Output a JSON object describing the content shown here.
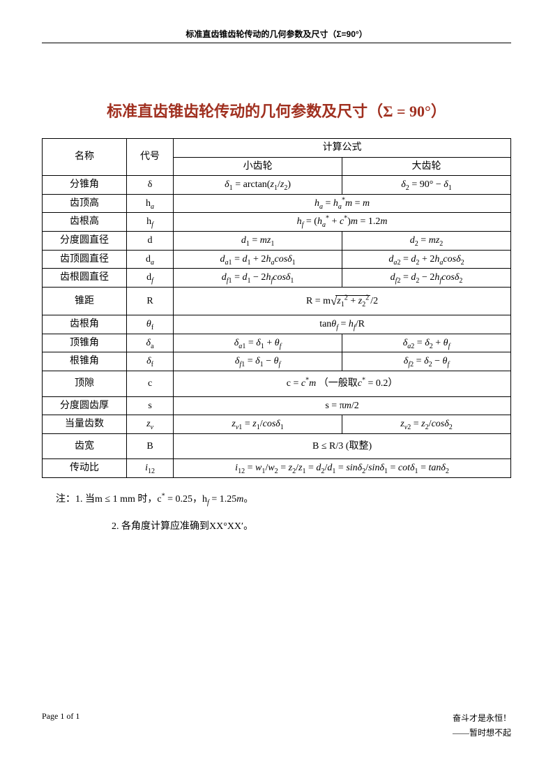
{
  "running_header": "标准直齿锥齿轮传动的几何参数及尺寸（Σ=90°）",
  "title_prefix": "标准直齿锥齿轮传动的几何参数及尺寸（",
  "title_math": "Σ = 90°",
  "title_suffix": "）",
  "header": {
    "name": "名称",
    "symbol": "代号",
    "formula_group": "计算公式",
    "pinion": "小齿轮",
    "gear": "大齿轮"
  },
  "rows": [
    {
      "name": "分锥角",
      "symbol_html": "δ",
      "pinion_html": "<span class='it'>δ</span><sub>1</sub> = arctan(<span class='it'>z</span><sub>1</sub>/<span class='it'>z</span><sub>2</sub>)",
      "gear_html": "<span class='it'>δ</span><sub>2</sub> = 90° − <span class='it'>δ</span><sub>1</sub>"
    },
    {
      "name": "齿顶高",
      "symbol_html": "h<sub><span class='it'>a</span></sub>",
      "merged_html": "<span class='it'>h<sub>a</sub></span> = <span class='it'>h</span><sub><span class='it'>a</span></sub><sup>*</sup><span class='it'>m</span> = <span class='it'>m</span>"
    },
    {
      "name": "齿根高",
      "symbol_html": "h<sub><span class='it'>f</span></sub>",
      "merged_html": "<span class='it'>h<sub>f</sub></span> = (<span class='it'>h</span><sub><span class='it'>a</span></sub><sup>*</sup> + <span class='it'>c</span><sup>*</sup>)<span class='it'>m</span> = 1.2<span class='it'>m</span>"
    },
    {
      "name": "分度圆直径",
      "symbol_html": "d",
      "pinion_html": "<span class='it'>d</span><sub>1</sub> = <span class='it'>mz</span><sub>1</sub>",
      "gear_html": "<span class='it'>d</span><sub>2</sub> = <span class='it'>mz</span><sub>2</sub>"
    },
    {
      "name": "齿顶圆直径",
      "symbol_html": "d<sub><span class='it'>a</span></sub>",
      "pinion_html": "<span class='it'>d</span><sub><span class='it'>a</span>1</sub> = <span class='it'>d</span><sub>1</sub> + 2<span class='it'>h<sub>a</sub>cosδ</span><sub>1</sub>",
      "gear_html": "<span class='it'>d</span><sub><span class='it'>a</span>2</sub> = <span class='it'>d</span><sub>2</sub> + 2<span class='it'>h<sub>a</sub>cosδ</span><sub>2</sub>"
    },
    {
      "name": "齿根圆直径",
      "symbol_html": "d<sub><span class='it'>f</span></sub>",
      "pinion_html": "<span class='it'>d</span><sub><span class='it'>f</span>1</sub> = <span class='it'>d</span><sub>1</sub> − 2<span class='it'>h<sub>f</sub>cosδ</span><sub>1</sub>",
      "gear_html": "<span class='it'>d</span><sub><span class='it'>f</span>2</sub> = <span class='it'>d</span><sub>2</sub> − 2<span class='it'>h<sub>f</sub>cosδ</span><sub>2</sub>"
    },
    {
      "name": "锥距",
      "symbol_html": "R",
      "merged_html": "R = m<span class='sqrt'><span class='radsym'>√</span><span class='radicand'><span class='it'>z</span><sub>1</sub><sup>2</sup> + <span class='it'>z</span><sub>2</sub><sup>2</sup></span></span>/2",
      "tall": true
    },
    {
      "name": "齿根角",
      "symbol_html": "<span class='it'>θ</span><sub>f</sub>",
      "merged_html": "tan<span class='it'>θ<sub>f</sub></span> = <span class='it'>h<sub>f</sub></span>/R"
    },
    {
      "name": "顶锥角",
      "symbol_html": "<span class='it'>δ</span><sub>a</sub>",
      "pinion_html": "<span class='it'>δ</span><sub><span class='it'>a</span>1</sub> = <span class='it'>δ</span><sub>1</sub> + <span class='it'>θ<sub>f</sub></span>",
      "gear_html": "<span class='it'>δ</span><sub><span class='it'>a</span>2</sub> = <span class='it'>δ</span><sub>2</sub> + <span class='it'>θ<sub>f</sub></span>"
    },
    {
      "name": "根锥角",
      "symbol_html": "<span class='it'>δ</span><sub>f</sub>",
      "pinion_html": "<span class='it'>δ</span><sub><span class='it'>f</span>1</sub> = <span class='it'>δ</span><sub>1</sub> − <span class='it'>θ<sub>f</sub></span>",
      "gear_html": "<span class='it'>δ</span><sub><span class='it'>f</span>2</sub> = <span class='it'>δ</span><sub>2</sub> − <span class='it'>θ<sub>f</sub></span>"
    },
    {
      "name": "顶隙",
      "symbol_html": "c",
      "merged_html": "c = <span class='it'>c</span><sup>*</sup><span class='it'>m</span> （一般取<span class='it'>c</span><sup>*</sup> = 0.2）",
      "tall": true
    },
    {
      "name": "分度圆齿厚",
      "symbol_html": "s",
      "merged_html": "s = π<span class='it'>m</span>/2"
    },
    {
      "name": "当量齿数",
      "symbol_html": "<span class='it'>z<sub>v</sub></span>",
      "pinion_html": "<span class='it'>z</span><sub><span class='it'>v</span>1</sub> = <span class='it'>z</span><sub>1</sub>/<span class='it'>cosδ</span><sub>1</sub>",
      "gear_html": "<span class='it'>z</span><sub><span class='it'>v</span>2</sub> = <span class='it'>z</span><sub>2</sub>/<span class='it'>cosδ</span><sub>2</sub>"
    },
    {
      "name": "齿宽",
      "symbol_html": "B",
      "merged_html": "B ≤ R/3 (取整)",
      "tall": true
    },
    {
      "name": "传动比",
      "symbol_html": "<span class='it'>i</span><sub>12</sub>",
      "merged_html": "<span class='it'>i</span><sub>12</sub> = <span class='it'>w</span><sub>1</sub>/<span class='it'>w</span><sub>2</sub> = <span class='it'>z</span><sub>2</sub>/<span class='it'>z</span><sub>1</sub> = <span class='it'>d</span><sub>2</sub>/<span class='it'>d</span><sub>1</sub> = <span class='it'>sinδ</span><sub>2</sub>/<span class='it'>sinδ</span><sub>1</sub> = <span class='it'>cotδ</span><sub>1</sub> = <span class='it'>tanδ</span><sub>2</sub>"
    }
  ],
  "notes": {
    "prefix": "注：",
    "line1_html": "1. 当m ≤ 1 mm 时，c<sup>*</sup> = 0.25，h<sub><span class='it'>f</span></sub> = 1.25<span class='it'>m</span>。",
    "line2": "2. 各角度计算应准确到XX°XX′。"
  },
  "footer": {
    "page_label": "Page 1 of 1",
    "motto": "奋斗才是永恒！",
    "author": "暂时想不起"
  },
  "layout": {
    "col_widths": [
      "18%",
      "10%",
      "36%",
      "36%"
    ],
    "title_color": "#a03020"
  }
}
